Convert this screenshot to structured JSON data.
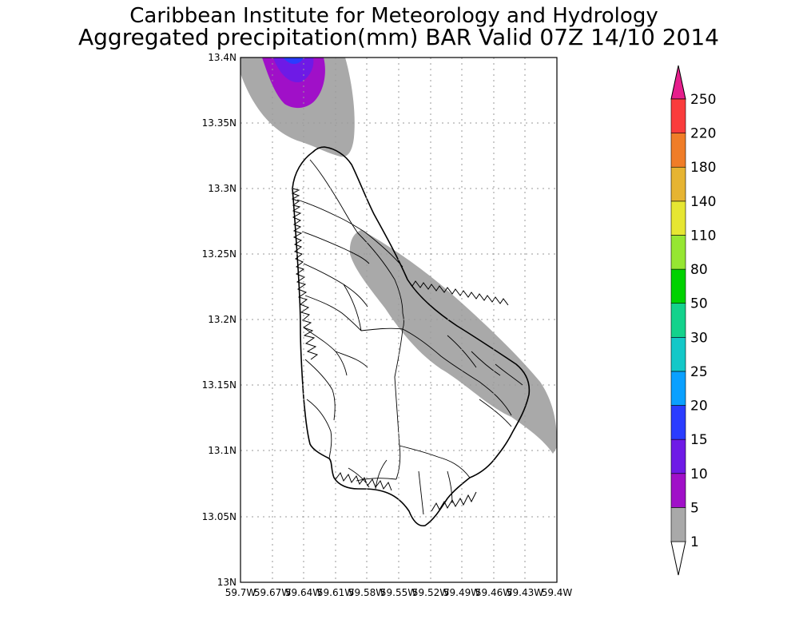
{
  "title": "Caribbean Institute for Meteorology and Hydrology",
  "subtitle": "Aggregated precipitation(mm) BAR Valid 07Z 14/10 2014",
  "map": {
    "lat_range": [
      13.0,
      13.4
    ],
    "lon_range": [
      -59.7,
      -59.4
    ],
    "grid": true,
    "lat_ticks": [
      "13N",
      "13.05N",
      "13.1N",
      "13.15N",
      "13.2N",
      "13.25N",
      "13.3N",
      "13.35N",
      "13.4N"
    ],
    "lon_ticks": [
      "59.7W",
      "59.67W",
      "59.64W",
      "59.61W",
      "59.58W",
      "59.55W",
      "59.52W",
      "59.49W",
      "59.46W",
      "59.43W",
      "59.4W"
    ],
    "precip_regions": [
      {
        "bin": "1-5",
        "color": "#a9a9a9"
      },
      {
        "bin": "5-10",
        "color": "#a010c8"
      },
      {
        "bin": "10-15",
        "color": "#6e1ae6"
      },
      {
        "bin": "15-20",
        "color": "#2a3cff"
      }
    ]
  },
  "colorbar": {
    "labels": [
      "1",
      "5",
      "10",
      "15",
      "20",
      "25",
      "30",
      "50",
      "80",
      "110",
      "140",
      "180",
      "220",
      "250"
    ],
    "colors": [
      "#a9a9a9",
      "#a010c8",
      "#6e1ae6",
      "#2a3cff",
      "#0aa0ff",
      "#14c8c8",
      "#14d28c",
      "#00d200",
      "#96e632",
      "#e6e632",
      "#e6b432",
      "#f07d28",
      "#fa3c3c"
    ],
    "under_color": "#ffffff",
    "over_color": "#e61e8c"
  }
}
